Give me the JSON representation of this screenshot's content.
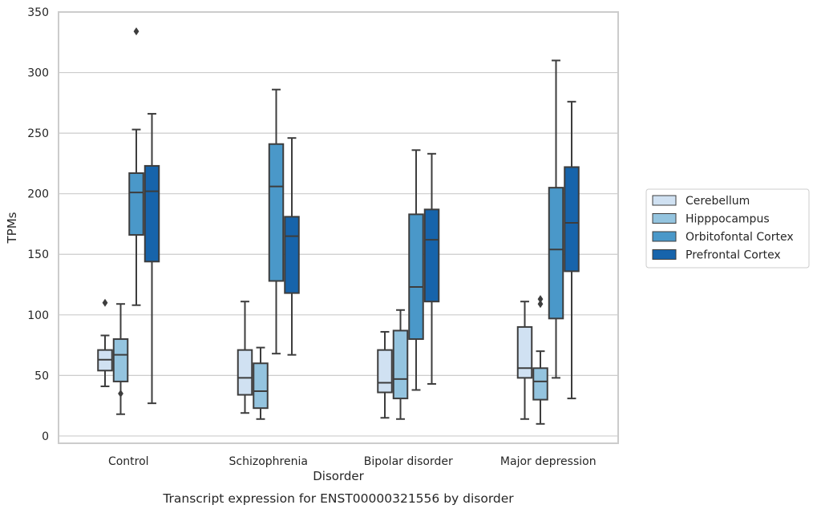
{
  "chart_data": {
    "type": "box",
    "title": "",
    "caption": "Transcript expression for ENST00000321556 by disorder",
    "xlabel": "Disorder",
    "ylabel": "TPMs",
    "ylim": [
      -6,
      350
    ],
    "yticks": [
      0,
      50,
      100,
      150,
      200,
      250,
      300,
      350
    ],
    "grid": "horizontal",
    "legend_position": "right",
    "categories": [
      "Control",
      "Schizophrenia",
      "Bipolar disorder",
      "Major depression"
    ],
    "series": [
      {
        "name": "Cerebellum",
        "color": "#d0e1f2",
        "boxes": [
          {
            "whislo": 41,
            "q1": 54,
            "med": 63,
            "q3": 71,
            "whishi": 83,
            "fliers": [
              110
            ]
          },
          {
            "whislo": 19,
            "q1": 34,
            "med": 48,
            "q3": 71,
            "whishi": 111,
            "fliers": []
          },
          {
            "whislo": 15,
            "q1": 36,
            "med": 44,
            "q3": 71,
            "whishi": 86,
            "fliers": []
          },
          {
            "whislo": 14,
            "q1": 48,
            "med": 56,
            "q3": 90,
            "whishi": 111,
            "fliers": []
          }
        ]
      },
      {
        "name": "Hipppocampus",
        "color": "#94c4df",
        "boxes": [
          {
            "whislo": 18,
            "q1": 45,
            "med": 67,
            "q3": 80,
            "whishi": 109,
            "fliers": [
              35
            ]
          },
          {
            "whislo": 14,
            "q1": 23,
            "med": 37,
            "q3": 60,
            "whishi": 73,
            "fliers": []
          },
          {
            "whislo": 14,
            "q1": 31,
            "med": 47,
            "q3": 87,
            "whishi": 104,
            "fliers": []
          },
          {
            "whislo": 10,
            "q1": 30,
            "med": 45,
            "q3": 56,
            "whishi": 70,
            "fliers": [
              109,
              113
            ]
          }
        ]
      },
      {
        "name": "Orbitofontal Cortex",
        "color": "#4a98c9",
        "boxes": [
          {
            "whislo": 108,
            "q1": 166,
            "med": 201,
            "q3": 217,
            "whishi": 253,
            "fliers": [
              334
            ]
          },
          {
            "whislo": 68,
            "q1": 128,
            "med": 206,
            "q3": 241,
            "whishi": 286,
            "fliers": []
          },
          {
            "whislo": 38,
            "q1": 80,
            "med": 123,
            "q3": 183,
            "whishi": 236,
            "fliers": []
          },
          {
            "whislo": 48,
            "q1": 97,
            "med": 154,
            "q3": 205,
            "whishi": 310,
            "fliers": []
          }
        ]
      },
      {
        "name": "Prefrontal Cortex",
        "color": "#1764ab",
        "boxes": [
          {
            "whislo": 27,
            "q1": 144,
            "med": 202,
            "q3": 223,
            "whishi": 266,
            "fliers": []
          },
          {
            "whislo": 67,
            "q1": 118,
            "med": 165,
            "q3": 181,
            "whishi": 246,
            "fliers": []
          },
          {
            "whislo": 43,
            "q1": 111,
            "med": 162,
            "q3": 187,
            "whishi": 233,
            "fliers": []
          },
          {
            "whislo": 31,
            "q1": 136,
            "med": 176,
            "q3": 222,
            "whishi": 276,
            "fliers": []
          }
        ]
      }
    ]
  }
}
